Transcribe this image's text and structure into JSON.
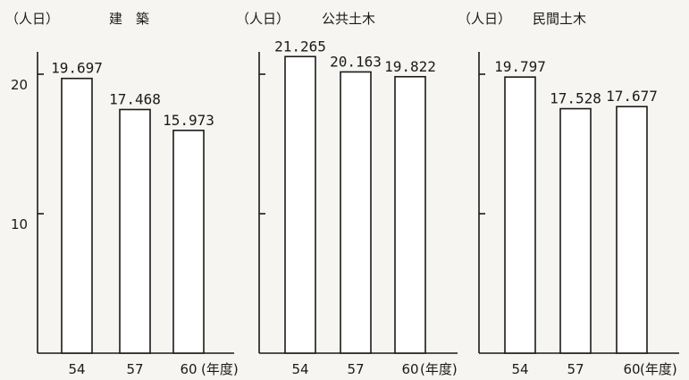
{
  "chart_data": [
    {
      "type": "bar",
      "title": "建　築",
      "unit_label": "（人日）",
      "categories": [
        "54",
        "57",
        "60"
      ],
      "category_suffix": "(年度)",
      "values": [
        19.697,
        17.468,
        15.973
      ],
      "value_labels": [
        "19.697",
        "17.468",
        "15.973"
      ],
      "ylim": [
        0,
        24
      ],
      "yticks": [
        "20",
        "10"
      ],
      "ytick_values": [
        20,
        10
      ]
    },
    {
      "type": "bar",
      "title": "公共土木",
      "unit_label": "（人日）",
      "categories": [
        "54",
        "57",
        "60"
      ],
      "category_suffix": "(年度)",
      "values": [
        21.265,
        20.163,
        19.822
      ],
      "value_labels": [
        "21.265",
        "20.163",
        "19.822"
      ],
      "ylim": [
        0,
        24
      ],
      "yticks": [],
      "ytick_values": [
        20,
        10
      ]
    },
    {
      "type": "bar",
      "title": "民間土木",
      "unit_label": "（人日）",
      "categories": [
        "54",
        "57",
        "60"
      ],
      "category_suffix": "(年度)",
      "values": [
        19.797,
        17.528,
        17.677
      ],
      "value_labels": [
        "19.797",
        "17.528",
        "17.677"
      ],
      "ylim": [
        0,
        24
      ],
      "yticks": [],
      "ytick_values": [
        20,
        10
      ]
    }
  ]
}
